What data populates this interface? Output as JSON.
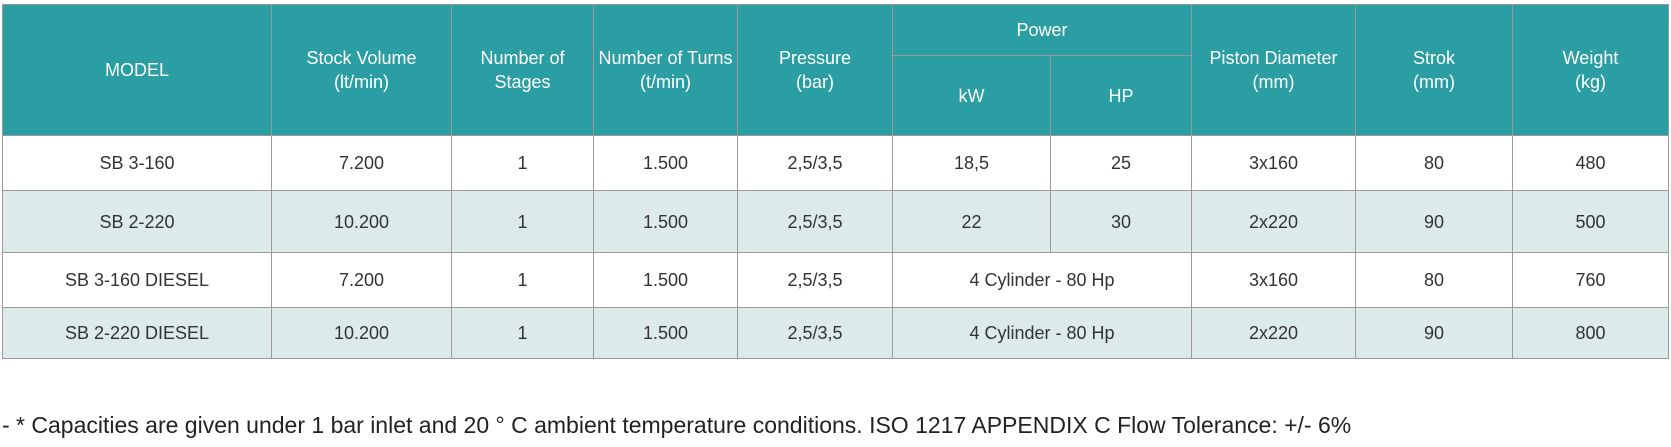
{
  "table": {
    "header": {
      "model": "MODEL",
      "stock_volume": "Stock  Volume\n(lt/min)",
      "stages": "Number of\nStages",
      "turns": "Number of Turns\n(t/min)",
      "pressure": "Pressure\n(bar)",
      "power": "Power",
      "kw": "kW",
      "hp": "HP",
      "piston": "Piston Diameter\n(mm)",
      "strok": "Strok\n(mm)",
      "weight": "Weight\n(kg)"
    },
    "rows": [
      {
        "model": "SB 3-160",
        "stock_volume": "7.200",
        "stages": "1",
        "turns": "1.500",
        "pressure": "2,5/3,5",
        "power": {
          "kw": "18,5",
          "hp": "25"
        },
        "piston": "3x160",
        "strok": "80",
        "weight": "480"
      },
      {
        "model": "SB 2-220",
        "stock_volume": "10.200",
        "stages": "1",
        "turns": "1.500",
        "pressure": "2,5/3,5",
        "power": {
          "kw": "22",
          "hp": "30"
        },
        "piston": "2x220",
        "strok": "90",
        "weight": "500"
      },
      {
        "model": "SB 3-160 DIESEL",
        "stock_volume": "7.200",
        "stages": "1",
        "turns": "1.500",
        "pressure": "2,5/3,5",
        "power": "4 Cylinder - 80 Hp",
        "piston": "3x160",
        "strok": "80",
        "weight": "760"
      },
      {
        "model": "SB 2-220 DIESEL",
        "stock_volume": "10.200",
        "stages": "1",
        "turns": "1.500",
        "pressure": "2,5/3,5",
        "power": "4 Cylinder - 80 Hp",
        "piston": "2x220",
        "strok": "90",
        "weight": "800"
      }
    ]
  },
  "footnote": "- * Capacities are given under 1 bar inlet and 20 ° C ambient temperature conditions. ISO 1217 APPENDIX C Flow Tolerance: +/- 6%"
}
